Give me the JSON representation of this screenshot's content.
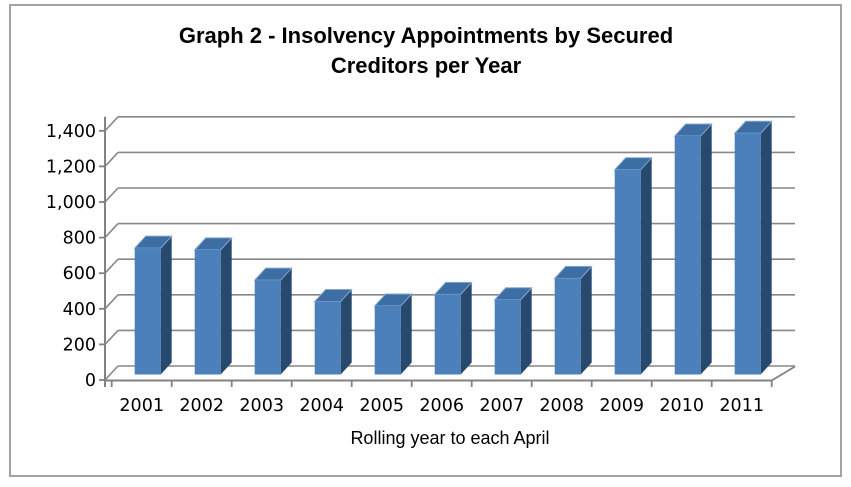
{
  "window": {
    "background": "#ffffff",
    "chart_border_color": "#a3a3a3"
  },
  "chart_data": {
    "type": "bar",
    "title": "Graph 2 - Insolvency Appointments by Secured Creditors per Year",
    "title_lines": [
      "Graph 2 - Insolvency Appointments by Secured",
      "Creditors per Year"
    ],
    "xlabel": "Rolling year to each April",
    "ylabel": "",
    "categories": [
      "2001",
      "2002",
      "2003",
      "2004",
      "2005",
      "2006",
      "2007",
      "2008",
      "2009",
      "2010",
      "2011"
    ],
    "values": [
      710,
      700,
      530,
      410,
      385,
      450,
      420,
      540,
      1150,
      1340,
      1355
    ],
    "ylim": [
      0,
      1400
    ],
    "ytick_step": 200,
    "ytick_labels": [
      "0",
      "200",
      "400",
      "600",
      "800",
      "1,000",
      "1,200",
      "1,400"
    ],
    "grid": true,
    "legend": false,
    "effect": "3d-column",
    "style": {
      "bar_front": "#4c80ba",
      "bar_side": "#27496e",
      "bar_top": "#3c6da3",
      "bar_top_highlight": "#84a7cf",
      "gridline": "#878787",
      "axis": "#828282",
      "text": "#000000"
    }
  }
}
